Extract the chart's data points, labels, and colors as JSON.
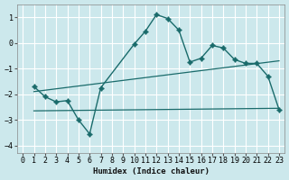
{
  "xlabel": "Humidex (Indice chaleur)",
  "background_color": "#cce8ec",
  "grid_color": "#ffffff",
  "line_color": "#1a6b6b",
  "xlim": [
    -0.5,
    23.5
  ],
  "ylim": [
    -4.3,
    1.5
  ],
  "yticks": [
    -4,
    -3,
    -2,
    -1,
    0,
    1
  ],
  "xticks": [
    0,
    1,
    2,
    3,
    4,
    5,
    6,
    7,
    8,
    9,
    10,
    11,
    12,
    13,
    14,
    15,
    16,
    17,
    18,
    19,
    20,
    21,
    22,
    23
  ],
  "curve1_x": [
    1,
    2,
    3,
    4,
    5,
    6,
    7,
    10,
    11,
    12,
    13,
    14,
    15,
    16,
    17,
    18,
    19,
    20,
    21,
    22,
    23
  ],
  "curve1_y": [
    -1.7,
    -2.1,
    -2.3,
    -2.25,
    -3.0,
    -3.55,
    -1.75,
    -0.05,
    0.45,
    1.1,
    0.95,
    0.5,
    -0.75,
    -0.6,
    -0.1,
    -0.2,
    -0.65,
    -0.8,
    -0.8,
    -1.3,
    -2.6
  ],
  "line1_x": [
    1,
    23
  ],
  "line1_y": [
    -2.65,
    -2.55
  ],
  "line2_x": [
    1,
    23
  ],
  "line2_y": [
    -1.9,
    -0.7
  ],
  "diamond_x": [
    1,
    2,
    3,
    4,
    5,
    6,
    7,
    10,
    11,
    12,
    13,
    14,
    15,
    16,
    17,
    18,
    19,
    20,
    21,
    22,
    23
  ],
  "diamond_y": [
    -1.7,
    -2.1,
    -2.3,
    -2.25,
    -3.0,
    -3.55,
    -1.75,
    -0.05,
    0.45,
    1.1,
    0.95,
    0.5,
    -0.75,
    -0.6,
    -0.1,
    -0.2,
    -0.65,
    -0.8,
    -0.8,
    -1.3,
    -2.6
  ]
}
